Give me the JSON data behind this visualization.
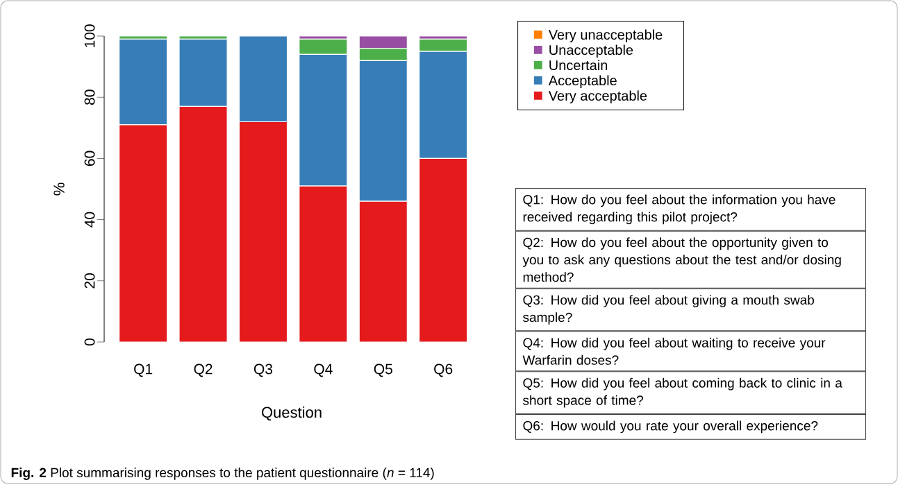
{
  "chart_data": {
    "type": "bar",
    "stacked": true,
    "xlabel": "Question",
    "ylabel": "%",
    "categories": [
      "Q1",
      "Q2",
      "Q3",
      "Q4",
      "Q5",
      "Q6"
    ],
    "series": [
      {
        "name": "Very acceptable",
        "color": "#e41a1c",
        "values": [
          71,
          77,
          72,
          51,
          46,
          60
        ]
      },
      {
        "name": "Acceptable",
        "color": "#377eb8",
        "values": [
          28,
          22,
          28,
          43,
          46,
          35
        ]
      },
      {
        "name": "Uncertain",
        "color": "#4daf4a",
        "values": [
          1,
          1,
          0,
          5,
          4,
          4
        ]
      },
      {
        "name": "Unacceptable",
        "color": "#984ea3",
        "values": [
          0,
          0,
          0,
          1,
          4,
          1
        ]
      },
      {
        "name": "Very unacceptable",
        "color": "#ff7f00",
        "values": [
          0,
          0,
          0,
          0,
          0,
          0
        ]
      }
    ],
    "ylim": [
      0,
      100
    ],
    "yticks": [
      0,
      20,
      40,
      60,
      80,
      100
    ],
    "legend": "top right",
    "annotations": [
      "Q1: How do you feel about the information you have received regarding this pilot project?",
      "Q2: How do you feel about the opportunity given to you to ask any questions about the test and/or dosing method?",
      "Q3: How did you feel about giving a mouth swab sample?",
      "Q4: How did you feel about waiting to receive your Warfarin doses?",
      "Q5: How did you feel about coming back to clinic in a short space of time?",
      "Q6: How would you rate your overall experience?",
      "**Fig. 2** Plot summarising responses to the patient questionnaire (*n* = 114)"
    ]
  }
}
